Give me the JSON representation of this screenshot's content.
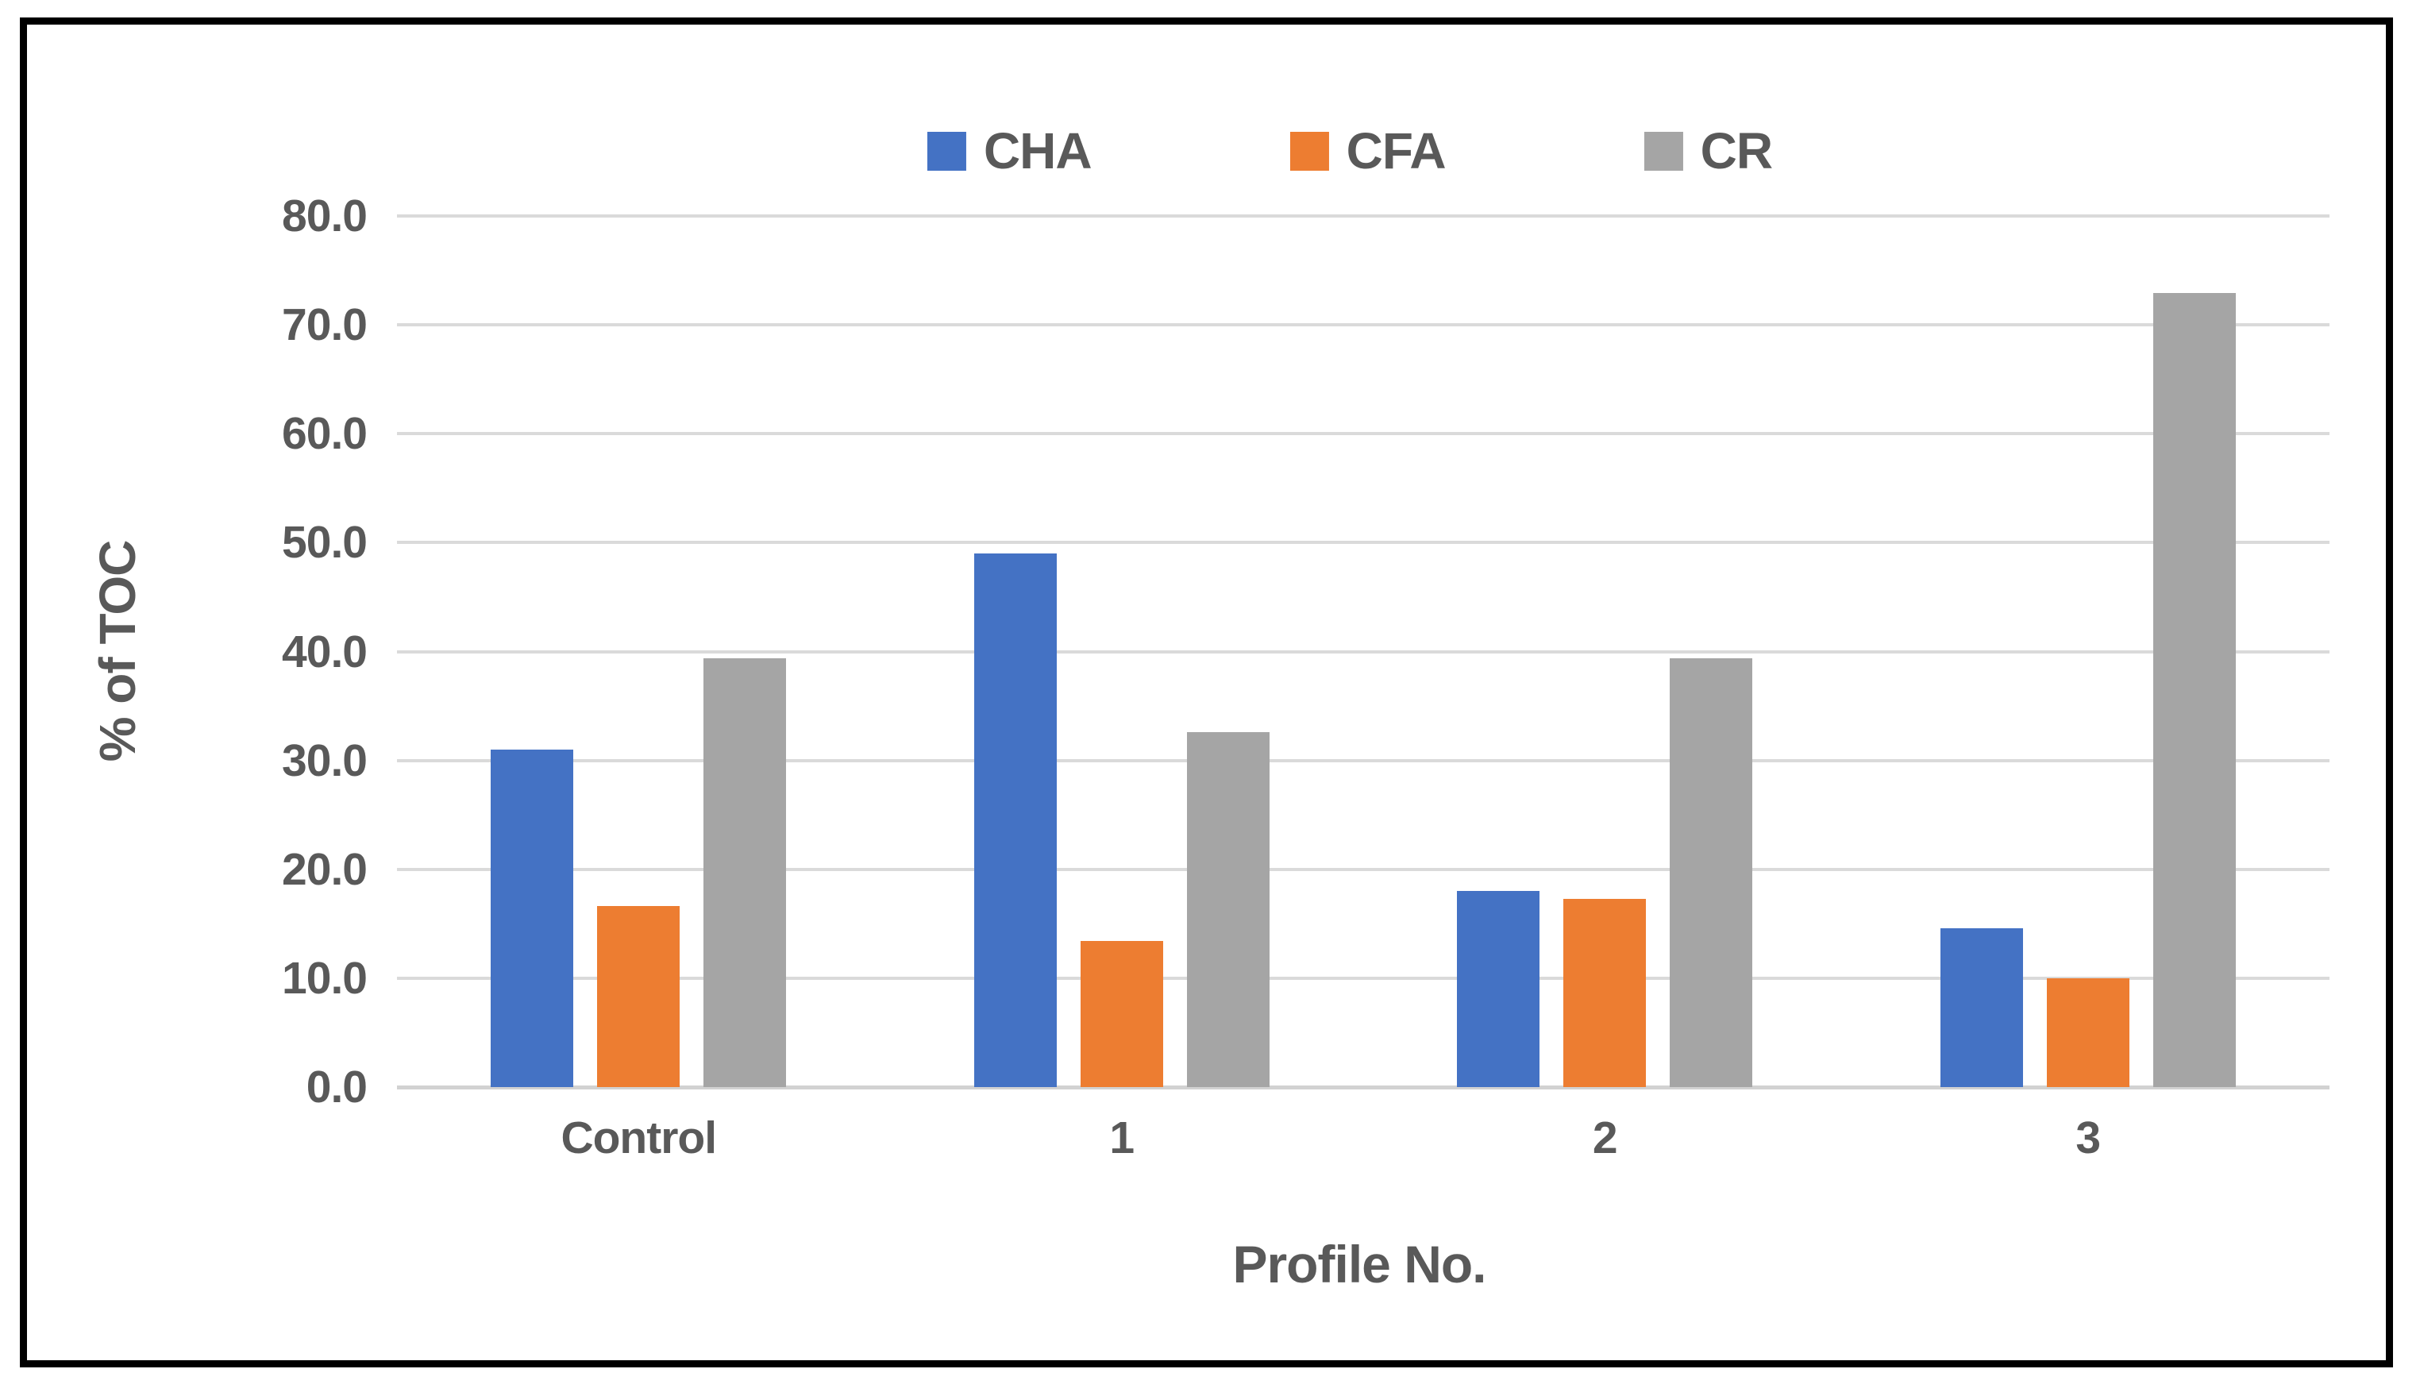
{
  "chart_data": {
    "type": "bar",
    "categories": [
      "Control",
      "1",
      "2",
      "3"
    ],
    "series": [
      {
        "name": "CHA",
        "color": "#4472C4",
        "values": [
          31.0,
          49.0,
          18.0,
          14.6
        ]
      },
      {
        "name": "CFA",
        "color": "#ED7D31",
        "values": [
          16.6,
          13.4,
          17.3,
          10.0
        ]
      },
      {
        "name": "CR",
        "color": "#A5A5A5",
        "values": [
          39.4,
          32.6,
          39.4,
          72.9
        ]
      }
    ],
    "title": "",
    "xlabel": "Profile No.",
    "ylabel": "% of TOC",
    "ylim": [
      0,
      80
    ],
    "ytick_step": 10,
    "ytick_labels": [
      "0.0",
      "10.0",
      "20.0",
      "30.0",
      "40.0",
      "50.0",
      "60.0",
      "70.0",
      "80.0"
    ],
    "grid": "horizontal",
    "legend_position": "top-center",
    "axis_text_color": "#595959",
    "gridline_color": "#DADADA",
    "frame_color": "#000000",
    "background_color": "#FFFFFF"
  }
}
